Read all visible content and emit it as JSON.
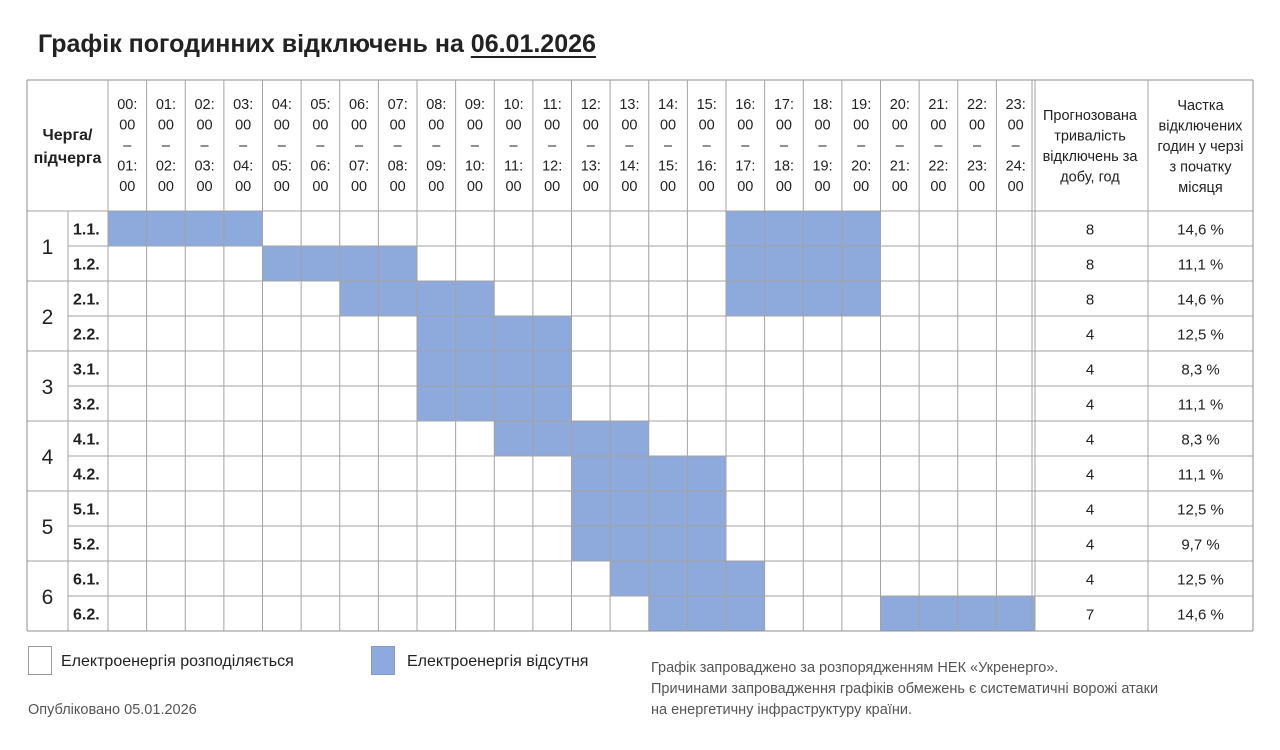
{
  "page": {
    "title_prefix": "Графік погодинних відключень на",
    "title_date": "06.01.2026",
    "published": "Опубліковано 05.01.2026",
    "note_lines": [
      "Графік запроваджено за розпорядженням НЕК «Укренерго».",
      "Причинами запровадження графіків обмежень є систематичні ворожі атаки",
      "на енергетичну інфраструктуру країни."
    ]
  },
  "table": {
    "header_queue": [
      "Черга/",
      "підчерга"
    ],
    "hours": [
      [
        "00:",
        "00",
        "–",
        "01:",
        "00"
      ],
      [
        "01:",
        "00",
        "–",
        "02:",
        "00"
      ],
      [
        "02:",
        "00",
        "–",
        "03:",
        "00"
      ],
      [
        "03:",
        "00",
        "–",
        "04:",
        "00"
      ],
      [
        "04:",
        "00",
        "–",
        "05:",
        "00"
      ],
      [
        "05:",
        "00",
        "–",
        "06:",
        "00"
      ],
      [
        "06:",
        "00",
        "–",
        "07:",
        "00"
      ],
      [
        "07:",
        "00",
        "–",
        "08:",
        "00"
      ],
      [
        "08:",
        "00",
        "–",
        "09:",
        "00"
      ],
      [
        "09:",
        "00",
        "–",
        "10:",
        "00"
      ],
      [
        "10:",
        "00",
        "–",
        "11:",
        "00"
      ],
      [
        "11:",
        "00",
        "–",
        "12:",
        "00"
      ],
      [
        "12:",
        "00",
        "–",
        "13:",
        "00"
      ],
      [
        "13:",
        "00",
        "–",
        "14:",
        "00"
      ],
      [
        "14:",
        "00",
        "–",
        "15:",
        "00"
      ],
      [
        "15:",
        "00",
        "–",
        "16:",
        "00"
      ],
      [
        "16:",
        "00",
        "–",
        "17:",
        "00"
      ],
      [
        "17:",
        "00",
        "–",
        "18:",
        "00"
      ],
      [
        "18:",
        "00",
        "–",
        "19:",
        "00"
      ],
      [
        "19:",
        "00",
        "–",
        "20:",
        "00"
      ],
      [
        "20:",
        "00",
        "–",
        "21:",
        "00"
      ],
      [
        "21:",
        "00",
        "–",
        "22:",
        "00"
      ],
      [
        "22:",
        "00",
        "–",
        "23:",
        "00"
      ],
      [
        "23:",
        "00",
        "–",
        "24:",
        "00"
      ]
    ],
    "header_duration": [
      "Прогнозована",
      "тривалість",
      "відключень за",
      "добу, год"
    ],
    "header_share": [
      "Частка",
      "відключених",
      "годин у черзі",
      "з початку",
      "місяця"
    ],
    "groups": [
      "1",
      "2",
      "3",
      "4",
      "5",
      "6"
    ],
    "rows": [
      {
        "sub": "1.1.",
        "off_hours": [
          0,
          1,
          2,
          3,
          16,
          17,
          18,
          19
        ],
        "duration": "8",
        "share": "14,6 %"
      },
      {
        "sub": "1.2.",
        "off_hours": [
          4,
          5,
          6,
          7,
          16,
          17,
          18,
          19
        ],
        "duration": "8",
        "share": "11,1 %"
      },
      {
        "sub": "2.1.",
        "off_hours": [
          6,
          7,
          8,
          9,
          16,
          17,
          18,
          19
        ],
        "duration": "8",
        "share": "14,6 %"
      },
      {
        "sub": "2.2.",
        "off_hours": [
          8,
          9,
          10,
          11
        ],
        "duration": "4",
        "share": "12,5 %"
      },
      {
        "sub": "3.1.",
        "off_hours": [
          8,
          9,
          10,
          11
        ],
        "duration": "4",
        "share": "8,3 %"
      },
      {
        "sub": "3.2.",
        "off_hours": [
          8,
          9,
          10,
          11
        ],
        "duration": "4",
        "share": "11,1 %"
      },
      {
        "sub": "4.1.",
        "off_hours": [
          10,
          11,
          12,
          13
        ],
        "duration": "4",
        "share": "8,3 %"
      },
      {
        "sub": "4.2.",
        "off_hours": [
          12,
          13,
          14,
          15
        ],
        "duration": "4",
        "share": "11,1 %"
      },
      {
        "sub": "5.1.",
        "off_hours": [
          12,
          13,
          14,
          15
        ],
        "duration": "4",
        "share": "12,5 %"
      },
      {
        "sub": "5.2.",
        "off_hours": [
          12,
          13,
          14,
          15
        ],
        "duration": "4",
        "share": "9,7 %"
      },
      {
        "sub": "6.1.",
        "off_hours": [
          13,
          14,
          15,
          16
        ],
        "duration": "4",
        "share": "12,5 %"
      },
      {
        "sub": "6.2.",
        "off_hours": [
          14,
          15,
          16,
          20,
          21,
          22,
          23
        ],
        "duration": "7",
        "share": "14,6 %"
      }
    ]
  },
  "legend": {
    "on_label": "Електроенергія розподіляється",
    "off_label": "Електроенергія відсутня",
    "on_color": "#ffffff",
    "off_color": "#8ea9db"
  }
}
